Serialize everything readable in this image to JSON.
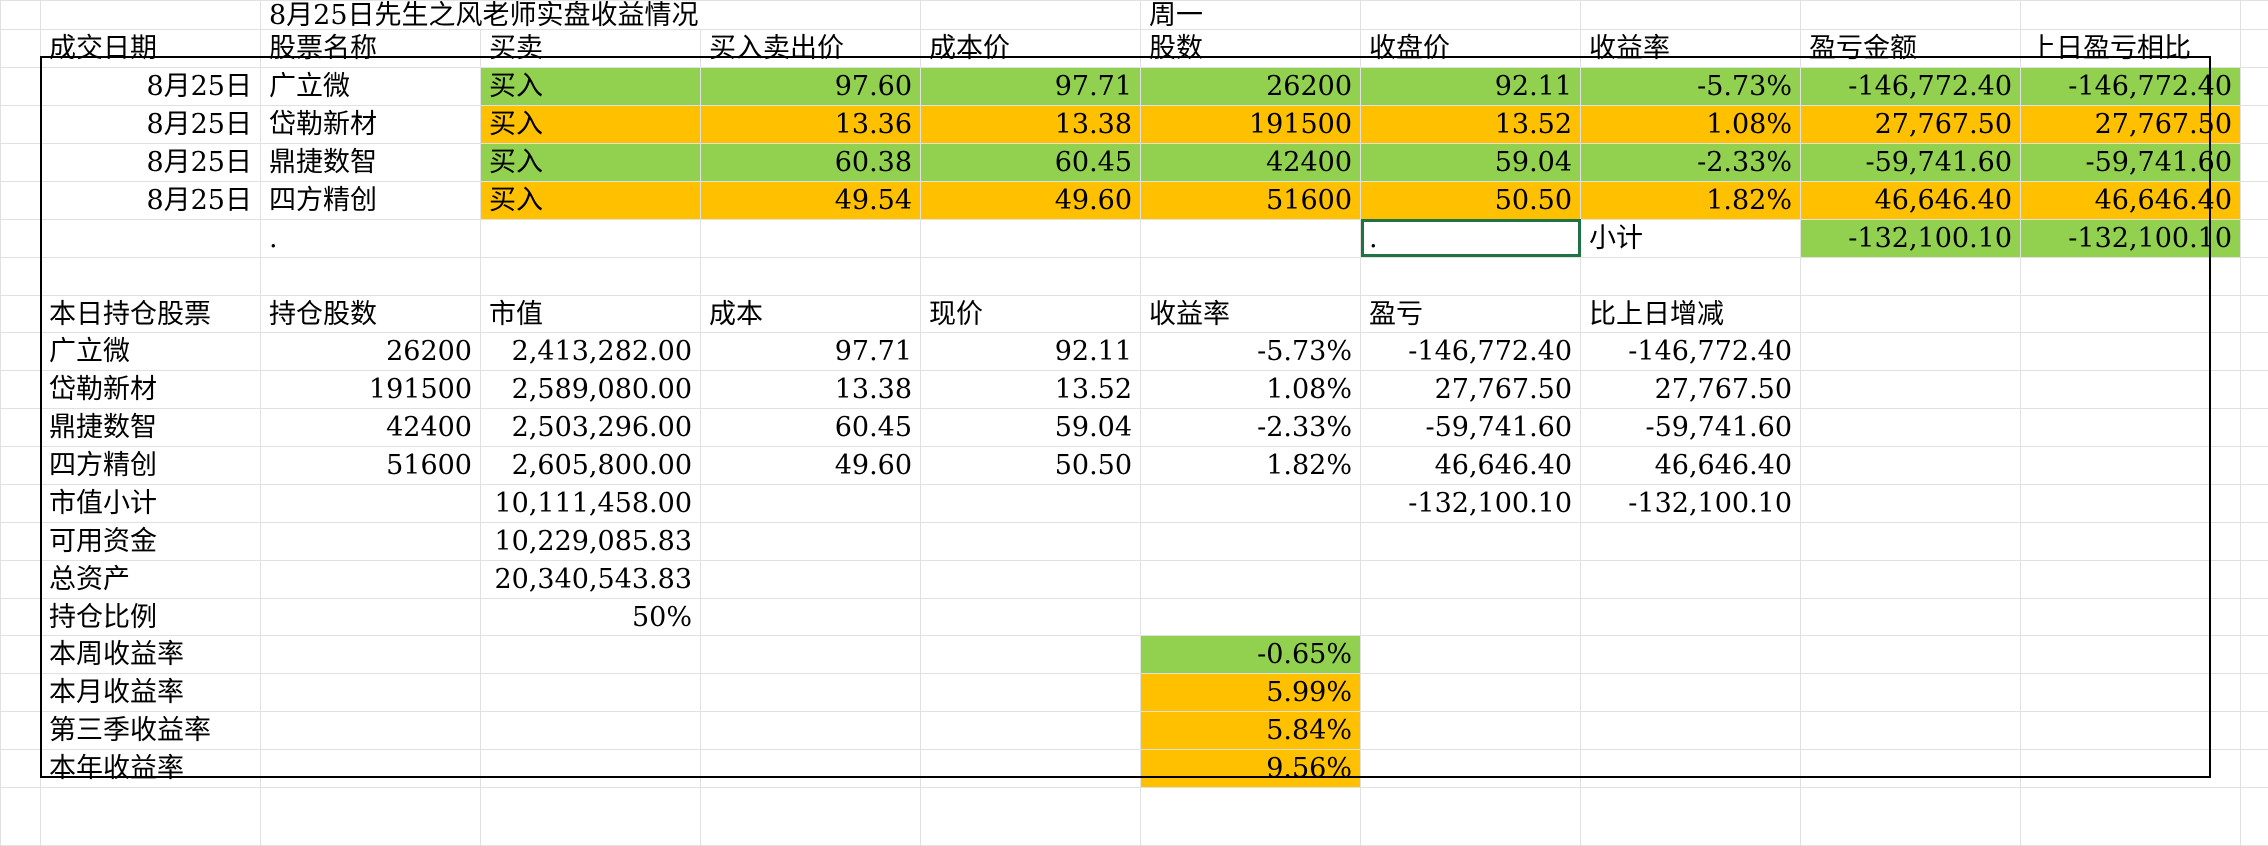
{
  "title_row": {
    "title": "8月25日先生之风老师实盘收益情况",
    "weekday": "周一"
  },
  "trade_headers": [
    "成交日期",
    "股票名称",
    "买卖",
    "买入卖出价",
    "成本价",
    "股数",
    "收盘价",
    "收益率",
    "盈亏金额",
    "上日盈亏相比"
  ],
  "trades": [
    {
      "date": "8月25日",
      "name": "广立微",
      "side": "买入",
      "price": "97.60",
      "cost": "97.71",
      "shares": "26200",
      "close": "92.11",
      "rate": "-5.73%",
      "pnl": "-146,772.40",
      "vs_prev": "-146,772.40",
      "color": "#92d050"
    },
    {
      "date": "8月25日",
      "name": "岱勒新材",
      "side": "买入",
      "price": "13.36",
      "cost": "13.38",
      "shares": "191500",
      "close": "13.52",
      "rate": "1.08%",
      "pnl": "27,767.50",
      "vs_prev": "27,767.50",
      "color": "#ffc000"
    },
    {
      "date": "8月25日",
      "name": "鼎捷数智",
      "side": "买入",
      "price": "60.38",
      "cost": "60.45",
      "shares": "42400",
      "close": "59.04",
      "rate": "-2.33%",
      "pnl": "-59,741.60",
      "vs_prev": "-59,741.60",
      "color": "#92d050"
    },
    {
      "date": "8月25日",
      "name": "四方精创",
      "side": "买入",
      "price": "49.54",
      "cost": "49.60",
      "shares": "51600",
      "close": "50.50",
      "rate": "1.82%",
      "pnl": "46,646.40",
      "vs_prev": "46,646.40",
      "color": "#ffc000"
    }
  ],
  "subtotal_row": {
    "dot1": ".",
    "dot2": ".",
    "label": "小计",
    "pnl": "-132,100.10",
    "vs_prev": "-132,100.10"
  },
  "hold_headers": [
    "本日持仓股票",
    "持仓股数",
    "市值",
    "成本",
    "现价",
    "收益率",
    "盈亏",
    "比上日增减"
  ],
  "holdings": [
    {
      "name": "广立微",
      "shares": "26200",
      "value": "2,413,282.00",
      "cost": "97.71",
      "price": "92.11",
      "rate": "-5.73%",
      "pnl": "-146,772.40",
      "change": "-146,772.40"
    },
    {
      "name": "岱勒新材",
      "shares": "191500",
      "value": "2,589,080.00",
      "cost": "13.38",
      "price": "13.52",
      "rate": "1.08%",
      "pnl": "27,767.50",
      "change": "27,767.50"
    },
    {
      "name": "鼎捷数智",
      "shares": "42400",
      "value": "2,503,296.00",
      "cost": "60.45",
      "price": "59.04",
      "rate": "-2.33%",
      "pnl": "-59,741.60",
      "change": "-59,741.60"
    },
    {
      "name": "四方精创",
      "shares": "51600",
      "value": "2,605,800.00",
      "cost": "49.60",
      "price": "50.50",
      "rate": "1.82%",
      "pnl": "46,646.40",
      "change": "46,646.40"
    }
  ],
  "summary": {
    "mv_label": "市值小计",
    "mv_value": "10,111,458.00",
    "mv_pnl": "-132,100.10",
    "mv_change": "-132,100.10",
    "cash_label": "可用资金",
    "cash_value": "10,229,085.83",
    "total_label": "总资产",
    "total_value": "20,340,543.83",
    "ratio_label": "持仓比例",
    "ratio_value": "50%"
  },
  "returns": [
    {
      "label": "本周收益率",
      "value": "-0.65%",
      "color": "#92d050"
    },
    {
      "label": "本月收益率",
      "value": "5.99%",
      "color": "#ffc000"
    },
    {
      "label": "第三季收益率",
      "value": "5.84%",
      "color": "#ffc000"
    },
    {
      "label": "本年收益率",
      "value": "9.56%",
      "color": "#ffc000"
    }
  ]
}
